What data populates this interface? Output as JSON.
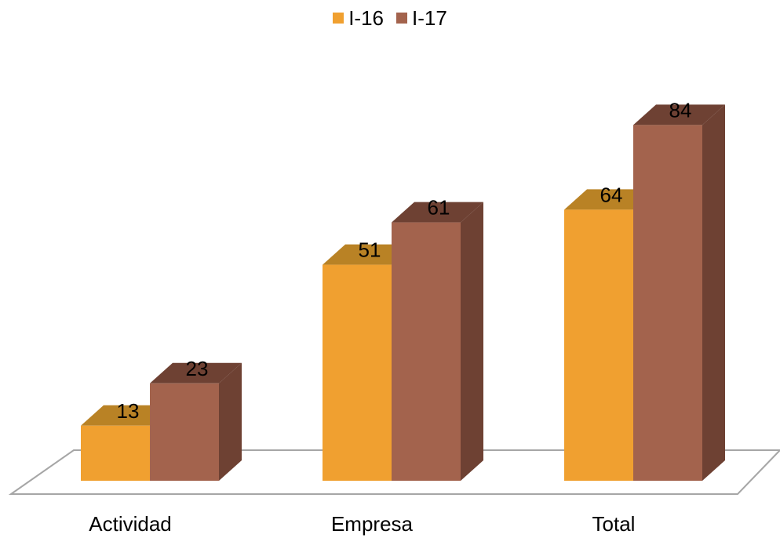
{
  "chart_data": {
    "type": "bar",
    "title": "",
    "xlabel": "",
    "ylabel": "",
    "categories": [
      "Actividad",
      "Empresa",
      "Total"
    ],
    "series": [
      {
        "name": "I-16",
        "values": [
          13,
          51,
          64
        ],
        "color": "#F0A030",
        "top_color": "#B98225",
        "side_color": "#B98225"
      },
      {
        "name": "I-17",
        "values": [
          23,
          61,
          84
        ],
        "color": "#A3634D",
        "top_color": "#6E4133",
        "side_color": "#6E4133"
      }
    ],
    "ylim": [
      0,
      90
    ],
    "grid": false,
    "legend_position": "top",
    "data_labels": true
  }
}
